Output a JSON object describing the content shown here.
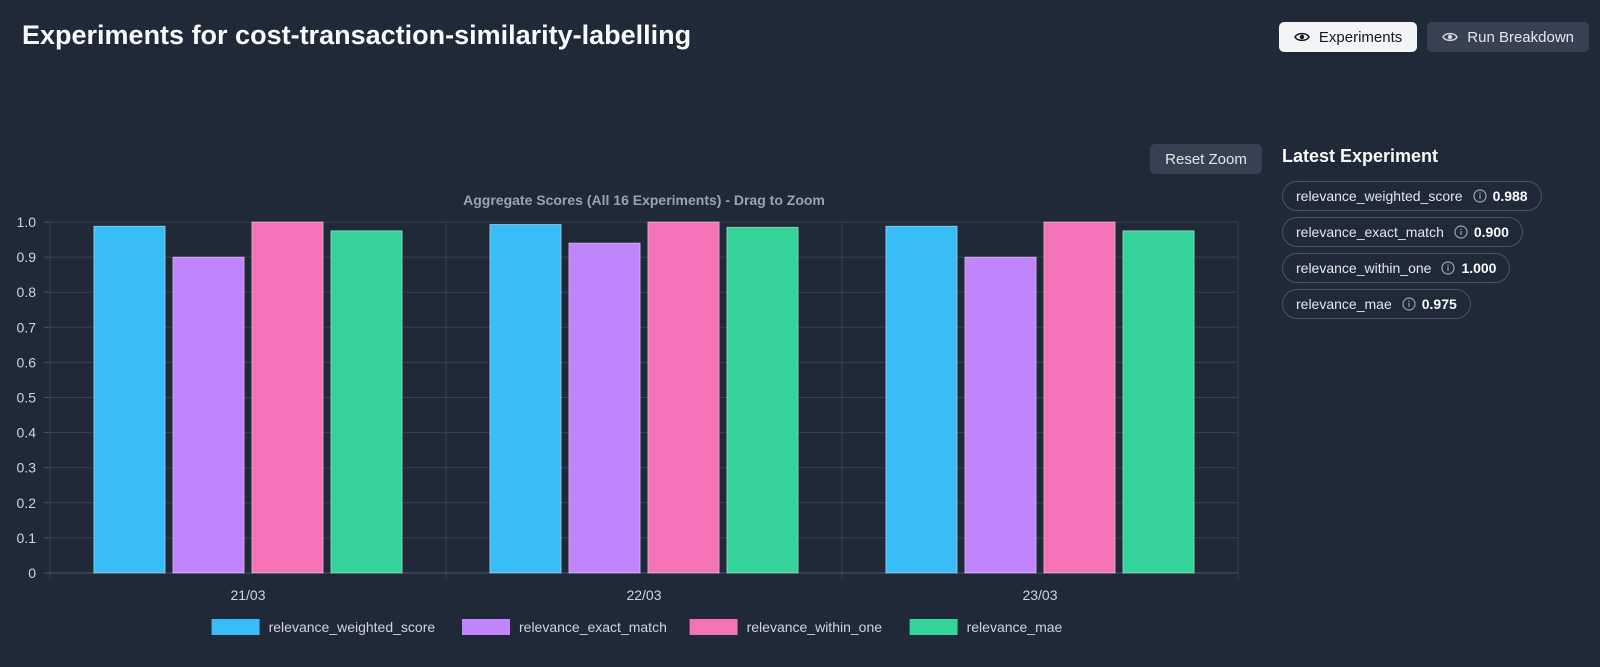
{
  "header": {
    "title": "Experiments for cost-transaction-similarity-labelling",
    "buttons": [
      {
        "label": "Experiments",
        "icon": "eye-icon",
        "active": true
      },
      {
        "label": "Run Breakdown",
        "icon": "eye-icon",
        "active": false
      }
    ]
  },
  "chart_controls": {
    "reset_zoom_label": "Reset Zoom"
  },
  "chart_data": {
    "type": "bar",
    "title": "Aggregate Scores (All 16 Experiments) - Drag to Zoom",
    "categories": [
      "21/03",
      "22/03",
      "23/03"
    ],
    "series": [
      {
        "name": "relevance_weighted_score",
        "color": "#38bdf8",
        "values": [
          0.988,
          0.993,
          0.988
        ]
      },
      {
        "name": "relevance_exact_match",
        "color": "#c084fc",
        "values": [
          0.9,
          0.94,
          0.9
        ]
      },
      {
        "name": "relevance_within_one",
        "color": "#f472b6",
        "values": [
          1.0,
          1.0,
          1.0
        ]
      },
      {
        "name": "relevance_mae",
        "color": "#34d399",
        "values": [
          0.975,
          0.985,
          0.975
        ]
      }
    ],
    "y_ticks": [
      "0",
      "0.1",
      "0.2",
      "0.3",
      "0.4",
      "0.5",
      "0.6",
      "0.7",
      "0.8",
      "0.9",
      "1.0"
    ],
    "ylim": [
      0,
      1
    ],
    "grid": true,
    "legend_position": "bottom"
  },
  "latest_experiment": {
    "title": "Latest Experiment",
    "metrics": [
      {
        "name": "relevance_weighted_score",
        "value": "0.988"
      },
      {
        "name": "relevance_exact_match",
        "value": "0.900"
      },
      {
        "name": "relevance_within_one",
        "value": "1.000"
      },
      {
        "name": "relevance_mae",
        "value": "0.975"
      }
    ]
  }
}
